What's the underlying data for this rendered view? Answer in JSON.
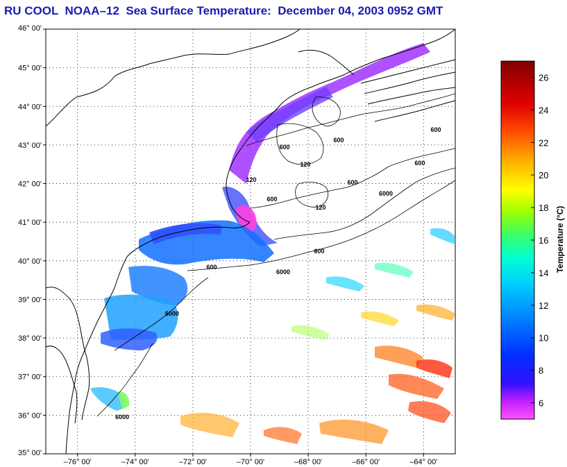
{
  "header": {
    "title": "RU COOL  NOAA–12  Sea Surface Temperature:  December 04, 2003 0952 GMT"
  },
  "map": {
    "lat_labels": [
      "46° 00'",
      "45° 00'",
      "44° 00'",
      "43° 00'",
      "42° 00'",
      "41° 00'",
      "40° 00'",
      "39° 00'",
      "38° 00'",
      "37° 00'",
      "36° 00'",
      "35° 00'"
    ],
    "lon_labels": [
      "–76° 00'",
      "–74° 00'",
      "–72° 00'",
      "–70° 00'",
      "–68° 00'",
      "–66° 00'",
      "–64° 00'"
    ],
    "lat_values": [
      46,
      45,
      44,
      43,
      42,
      41,
      40,
      39,
      38,
      37,
      36,
      35
    ],
    "lon_values": [
      -76,
      -74,
      -72,
      -70,
      -68,
      -66,
      -64
    ],
    "lat_range": [
      35,
      46
    ],
    "lon_range": [
      -77.1,
      -62.9
    ],
    "grid": "dotted",
    "contour_labels": [
      "600",
      "600",
      "600",
      "600",
      "600",
      "600",
      "120",
      "120",
      "120",
      "600",
      "6000",
      "600",
      "6000",
      "6000",
      "6000"
    ]
  },
  "colorbar": {
    "label": "Temperature (°C)",
    "tick_labels": [
      "26",
      "24",
      "22",
      "20",
      "18",
      "16",
      "14",
      "12",
      "10",
      "8",
      "6"
    ],
    "tick_values": [
      26,
      24,
      22,
      20,
      18,
      16,
      14,
      12,
      10,
      8,
      6
    ],
    "range": [
      5,
      27
    ],
    "colors": [
      "#ff40ff",
      "#c020ff",
      "#2020ff",
      "#0070ff",
      "#00d0ff",
      "#00ffb0",
      "#80ff00",
      "#ffff00",
      "#ffa000",
      "#ff3000",
      "#c00000",
      "#800000"
    ]
  }
}
